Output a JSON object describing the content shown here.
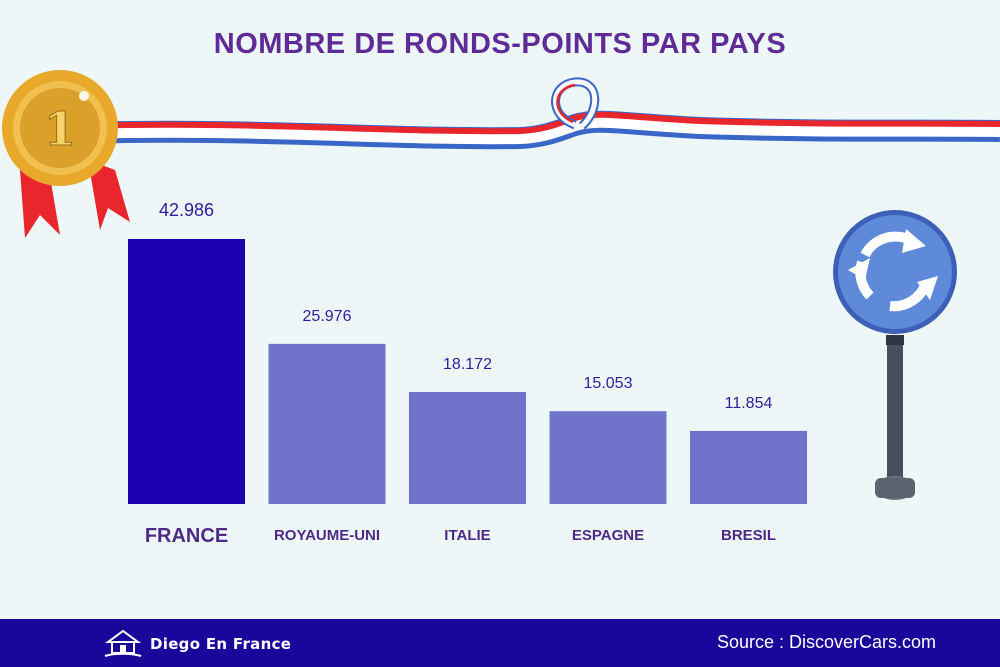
{
  "colors": {
    "background": "#eef7f8",
    "title": "#5e2b97",
    "highlight_bar": "#1d00b0",
    "bar": "#6f73c9",
    "value_label": "#2a1f9c",
    "category_label": "#4e2a86",
    "footer": "#1a069a",
    "gold": "#e8a92b",
    "ribbon_red": "#e8262c",
    "ribbon_blue": "#3a66c8",
    "sign_blue": "#5f8ad9",
    "pole": "#45505c"
  },
  "chart_data": {
    "type": "bar",
    "title": "NOMBRE DE RONDS-POINTS PAR PAYS",
    "categories": [
      "FRANCE",
      "ROYAUME-UNI",
      "ITALIE",
      "ESPAGNE",
      "BRESIL"
    ],
    "values": [
      42986,
      25976,
      18172,
      15053,
      11854
    ],
    "value_labels": [
      "42.986",
      "25.976",
      "18.172",
      "15.053",
      "11.854"
    ],
    "highlight_index": 0,
    "xlabel": "",
    "ylabel": "",
    "ylim": [
      0,
      42986
    ],
    "grid": false,
    "legend": "none"
  },
  "medal": {
    "label": "1",
    "icon": "gold-medal-icon"
  },
  "sign": {
    "icon": "roundabout-sign-icon"
  },
  "footer": {
    "brand": "Diego En France",
    "brand_icon": "house-logo-icon",
    "source": "Source : DiscoverCars.com"
  }
}
